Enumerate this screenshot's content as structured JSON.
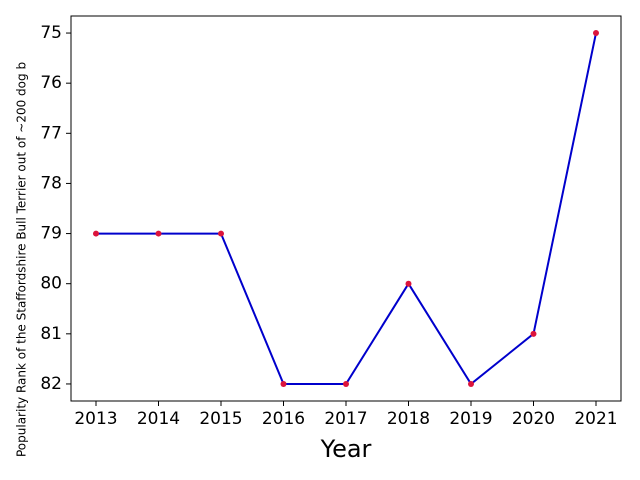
{
  "chart_data": {
    "type": "line",
    "x_label": "Year",
    "y_label": "Popularity Rank of the Staffordshire Bull Terrier out of ~200 dog b",
    "x": [
      2013,
      2014,
      2015,
      2016,
      2017,
      2018,
      2019,
      2020,
      2021
    ],
    "series": [
      {
        "color": "#0000cc",
        "marker_color": "#dc143c",
        "values": [
          79,
          79,
          79,
          82,
          82,
          80,
          82,
          81,
          75
        ]
      }
    ],
    "xlim": [
      2012.6,
      2021.4
    ],
    "xticks": [
      2013,
      2014,
      2015,
      2016,
      2017,
      2018,
      2019,
      2020,
      2021
    ],
    "ylim": [
      82.34,
      74.66
    ],
    "yticks": [
      75,
      76,
      77,
      78,
      79,
      80,
      81,
      82
    ],
    "grid": false
  }
}
